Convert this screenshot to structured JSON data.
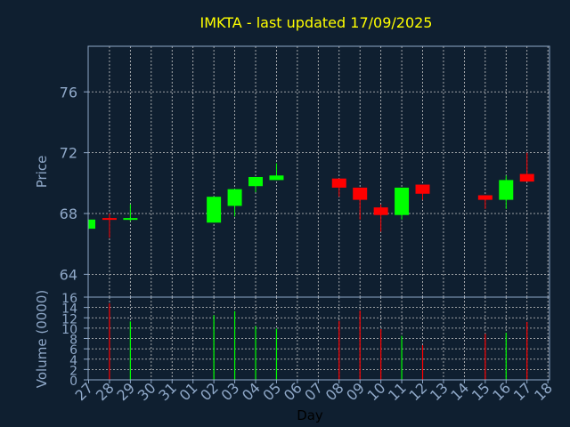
{
  "chart_data": [
    {
      "type": "candlestick",
      "title": "IMKTA - last updated 17/09/2025",
      "ylabel": "Price",
      "ylim": [
        62.5,
        79
      ],
      "yticks": [
        64,
        68,
        72,
        76
      ],
      "grid": true,
      "up_color": "#00ff00",
      "down_color": "#ff0000",
      "candles": [
        {
          "day": "27",
          "idx": 0,
          "open": 67.0,
          "close": 67.6,
          "high": 67.6,
          "low": 67.0
        },
        {
          "day": "28",
          "idx": 1,
          "open": 67.7,
          "close": 67.6,
          "high": 68.0,
          "low": 66.4
        },
        {
          "day": "29",
          "idx": 2,
          "open": 67.6,
          "close": 67.7,
          "high": 68.6,
          "low": 67.5
        },
        {
          "day": "02",
          "idx": 6,
          "open": 67.4,
          "close": 69.1,
          "high": 69.1,
          "low": 67.4
        },
        {
          "day": "03",
          "idx": 7,
          "open": 68.5,
          "close": 69.6,
          "high": 69.6,
          "low": 67.8
        },
        {
          "day": "04",
          "idx": 8,
          "open": 69.8,
          "close": 70.4,
          "high": 70.4,
          "low": 69.4
        },
        {
          "day": "05",
          "idx": 9,
          "open": 70.2,
          "close": 70.5,
          "high": 71.3,
          "low": 70.2
        },
        {
          "day": "08",
          "idx": 12,
          "open": 70.3,
          "close": 69.7,
          "high": 70.3,
          "low": 69.1
        },
        {
          "day": "09",
          "idx": 13,
          "open": 69.7,
          "close": 68.9,
          "high": 69.7,
          "low": 67.6
        },
        {
          "day": "10",
          "idx": 14,
          "open": 68.4,
          "close": 67.9,
          "high": 68.6,
          "low": 66.8
        },
        {
          "day": "11",
          "idx": 15,
          "open": 67.9,
          "close": 69.7,
          "high": 69.7,
          "low": 67.6
        },
        {
          "day": "12",
          "idx": 16,
          "open": 69.9,
          "close": 69.3,
          "high": 69.9,
          "low": 68.9
        },
        {
          "day": "15",
          "idx": 19,
          "open": 69.2,
          "close": 68.9,
          "high": 69.2,
          "low": 68.3
        },
        {
          "day": "16",
          "idx": 20,
          "open": 68.9,
          "close": 70.2,
          "high": 70.5,
          "low": 68.3
        },
        {
          "day": "17",
          "idx": 21,
          "open": 70.6,
          "close": 70.1,
          "high": 72.0,
          "low": 70.1
        }
      ]
    },
    {
      "type": "bar",
      "ylabel": "Volume (0000)",
      "xlabel": "Day",
      "ylim": [
        0,
        16
      ],
      "yticks": [
        0,
        2,
        4,
        6,
        8,
        10,
        12,
        14,
        16
      ],
      "categories": [
        "27",
        "28",
        "29",
        "30",
        "31",
        "01",
        "02",
        "03",
        "04",
        "05",
        "06",
        "07",
        "08",
        "09",
        "10",
        "11",
        "12",
        "13",
        "14",
        "15",
        "16",
        "17",
        "18"
      ],
      "volumes": [
        {
          "idx": 1,
          "value": 14.8,
          "color": "#ff0000"
        },
        {
          "idx": 2,
          "value": 11.3,
          "color": "#00ff00"
        },
        {
          "idx": 6,
          "value": 12.5,
          "color": "#00ff00"
        },
        {
          "idx": 7,
          "value": 13.3,
          "color": "#00ff00"
        },
        {
          "idx": 8,
          "value": 10.4,
          "color": "#00ff00"
        },
        {
          "idx": 9,
          "value": 9.9,
          "color": "#00ff00"
        },
        {
          "idx": 12,
          "value": 11.4,
          "color": "#ff0000"
        },
        {
          "idx": 13,
          "value": 13.4,
          "color": "#ff0000"
        },
        {
          "idx": 14,
          "value": 9.8,
          "color": "#ff0000"
        },
        {
          "idx": 15,
          "value": 8.5,
          "color": "#00ff00"
        },
        {
          "idx": 16,
          "value": 6.7,
          "color": "#ff0000"
        },
        {
          "idx": 19,
          "value": 8.9,
          "color": "#ff0000"
        },
        {
          "idx": 20,
          "value": 9.1,
          "color": "#00ff00"
        },
        {
          "idx": 21,
          "value": 11.2,
          "color": "#ff0000"
        }
      ]
    }
  ]
}
